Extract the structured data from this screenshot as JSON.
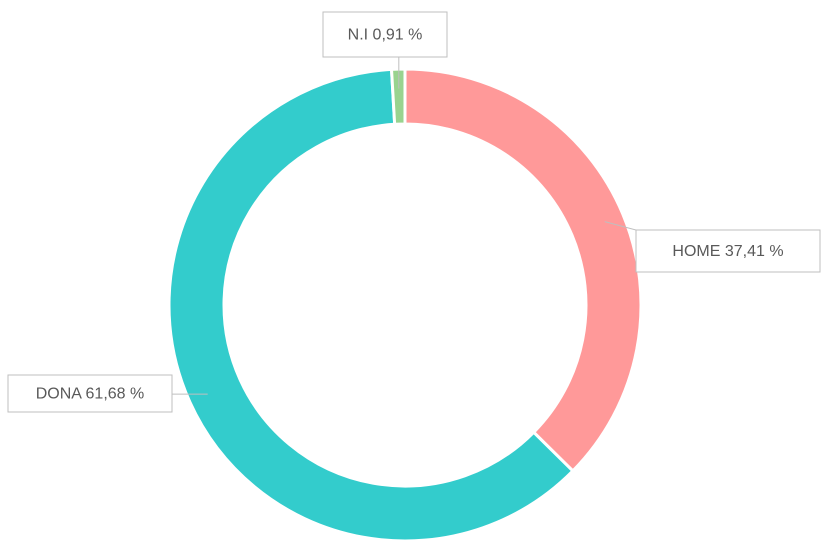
{
  "chart_data": {
    "type": "donut",
    "categories": [
      "HOME",
      "DONA",
      "N.I"
    ],
    "values": [
      37.41,
      61.68,
      0.91
    ],
    "value_labels": [
      "37,41 %",
      "61,68 %",
      "0,91 %"
    ],
    "colors": [
      "#ff9999",
      "#33cccc",
      "#99d38f"
    ]
  }
}
